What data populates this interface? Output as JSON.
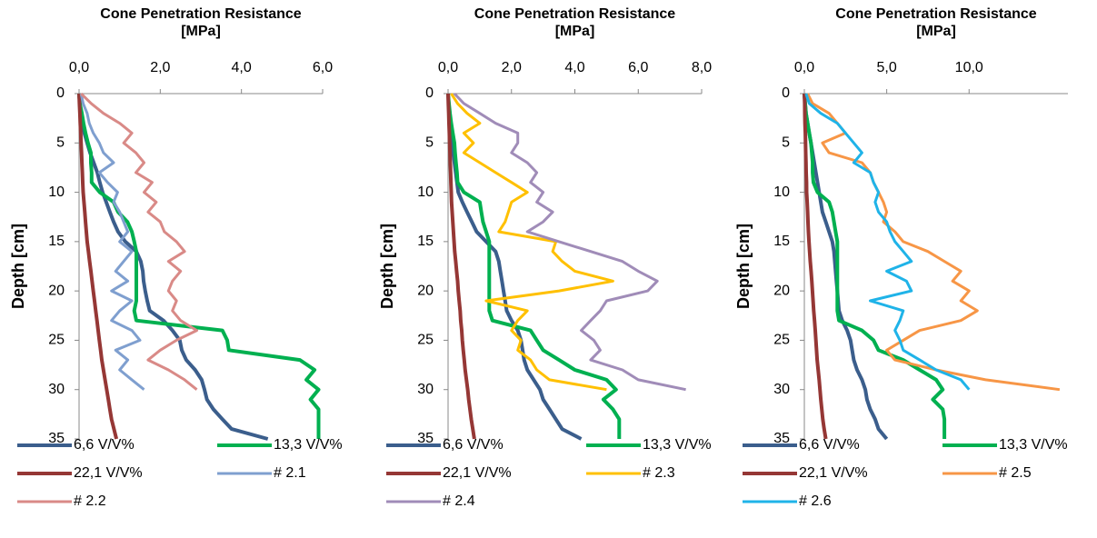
{
  "chart_data": [
    {
      "type": "line",
      "x_label": "Cone Penetration Resistance [MPa]",
      "y_label": "Depth [cm]",
      "y_inverted": true,
      "xlim": [
        0,
        6
      ],
      "xticks": [
        {
          "value": 0,
          "label": "0,0"
        },
        {
          "value": 2,
          "label": "2,0"
        },
        {
          "value": 4,
          "label": "4,0"
        },
        {
          "value": 6,
          "label": "6,0"
        }
      ],
      "ylim": [
        0,
        35
      ],
      "yticks": [
        0,
        5,
        10,
        15,
        20,
        25,
        30,
        35
      ],
      "y": [
        0,
        1,
        2,
        3,
        4,
        5,
        6,
        7,
        8,
        9,
        10,
        11,
        12,
        13,
        14,
        15,
        16,
        17,
        18,
        19,
        20,
        21,
        22,
        23,
        24,
        25,
        26,
        27,
        28,
        29,
        30,
        31,
        32,
        33,
        34,
        35
      ],
      "series": [
        {
          "name": "6,6 V/V%",
          "color": "#3b5e8c",
          "values": [
            0,
            0.02,
            0.04,
            0.09,
            0.13,
            0.2,
            0.27,
            0.36,
            0.45,
            0.51,
            0.58,
            0.67,
            0.76,
            0.85,
            0.96,
            1.14,
            1.41,
            1.52,
            1.57,
            1.59,
            1.63,
            1.68,
            1.74,
            2.08,
            2.3,
            2.48,
            2.53,
            2.64,
            2.86,
            3.02,
            3.09,
            3.15,
            3.31,
            3.53,
            3.76,
            4.65
          ]
        },
        {
          "name": "13,3 V/V%",
          "color": "#00b050",
          "values": [
            0,
            0.02,
            0.07,
            0.11,
            0.16,
            0.22,
            0.29,
            0.29,
            0.31,
            0.31,
            0.51,
            0.85,
            0.96,
            1.19,
            1.3,
            1.36,
            1.41,
            1.41,
            1.41,
            1.41,
            1.41,
            1.41,
            1.36,
            1.41,
            3.53,
            3.65,
            3.69,
            5.44,
            5.8,
            5.6,
            5.9,
            5.7,
            5.9,
            5.9,
            5.9,
            5.9
          ]
        },
        {
          "name": "22,1 V/V%",
          "color": "#953735",
          "values": [
            0,
            0.01,
            0.02,
            0.03,
            0.04,
            0.05,
            0.06,
            0.07,
            0.08,
            0.09,
            0.1,
            0.12,
            0.14,
            0.16,
            0.18,
            0.2,
            0.23,
            0.26,
            0.29,
            0.32,
            0.35,
            0.38,
            0.41,
            0.44,
            0.47,
            0.5,
            0.53,
            0.56,
            0.6,
            0.64,
            0.68,
            0.72,
            0.76,
            0.8,
            0.86,
            0.92
          ]
        },
        {
          "name": "# 2.1",
          "color": "#7f9fcf",
          "values": [
            0.05,
            0.1,
            0.2,
            0.25,
            0.35,
            0.5,
            0.6,
            0.85,
            0.5,
            0.7,
            0.95,
            0.85,
            1.0,
            1.1,
            1.2,
            1.0,
            1.3,
            1.1,
            0.9,
            1.2,
            0.8,
            1.3,
            1.0,
            0.8,
            1.3,
            1.5,
            0.9,
            1.2,
            1.0,
            1.3,
            1.6,
            null,
            null,
            null,
            null,
            null
          ]
        },
        {
          "name": "# 2.2",
          "color": "#d98a87",
          "values": [
            0.05,
            0.3,
            0.6,
            1.0,
            1.3,
            1.1,
            1.4,
            1.6,
            1.4,
            1.8,
            1.6,
            1.9,
            1.7,
            2.0,
            2.1,
            2.4,
            2.6,
            2.2,
            2.5,
            2.3,
            2.2,
            2.4,
            2.3,
            2.5,
            2.9,
            2.4,
            2.0,
            1.7,
            2.2,
            2.6,
            2.9,
            null,
            null,
            null,
            null,
            null
          ]
        }
      ]
    },
    {
      "type": "line",
      "x_label": "Cone Penetration Resistance [MPa]",
      "y_label": "Depth [cm]",
      "y_inverted": true,
      "xlim": [
        0,
        8
      ],
      "xticks": [
        {
          "value": 0,
          "label": "0,0"
        },
        {
          "value": 2,
          "label": "2,0"
        },
        {
          "value": 4,
          "label": "4,0"
        },
        {
          "value": 6,
          "label": "6,0"
        },
        {
          "value": 8,
          "label": "8,0"
        }
      ],
      "ylim": [
        0,
        35
      ],
      "yticks": [
        0,
        5,
        10,
        15,
        20,
        25,
        30,
        35
      ],
      "y": [
        0,
        1,
        2,
        3,
        4,
        5,
        6,
        7,
        8,
        9,
        10,
        11,
        12,
        13,
        14,
        15,
        16,
        17,
        18,
        19,
        20,
        21,
        22,
        23,
        24,
        25,
        26,
        27,
        28,
        29,
        30,
        31,
        32,
        33,
        34,
        35
      ],
      "series": [
        {
          "name": "6,6 V/V%",
          "color": "#3b5e8c",
          "values": [
            0,
            0.02,
            0.05,
            0.08,
            0.1,
            0.13,
            0.16,
            0.2,
            0.24,
            0.28,
            0.32,
            0.45,
            0.6,
            0.75,
            0.9,
            1.2,
            1.5,
            1.6,
            1.65,
            1.7,
            1.75,
            1.8,
            1.85,
            2.0,
            2.2,
            2.3,
            2.35,
            2.4,
            2.5,
            2.7,
            2.9,
            3.0,
            3.2,
            3.4,
            3.6,
            4.2
          ]
        },
        {
          "name": "13,3 V/V%",
          "color": "#00b050",
          "values": [
            0,
            0.03,
            0.06,
            0.1,
            0.15,
            0.2,
            0.22,
            0.25,
            0.28,
            0.3,
            0.5,
            1.0,
            1.05,
            1.1,
            1.2,
            1.3,
            1.3,
            1.3,
            1.3,
            1.3,
            1.3,
            1.3,
            1.3,
            1.4,
            2.6,
            2.8,
            3.0,
            3.5,
            4.0,
            5.0,
            5.3,
            4.9,
            5.2,
            5.4,
            5.4,
            5.4
          ]
        },
        {
          "name": "22,1 V/V%",
          "color": "#953735",
          "values": [
            0,
            0.01,
            0.02,
            0.03,
            0.04,
            0.05,
            0.06,
            0.07,
            0.08,
            0.09,
            0.1,
            0.11,
            0.13,
            0.15,
            0.17,
            0.19,
            0.21,
            0.24,
            0.27,
            0.3,
            0.32,
            0.35,
            0.38,
            0.4,
            0.43,
            0.45,
            0.48,
            0.51,
            0.54,
            0.58,
            0.62,
            0.65,
            0.69,
            0.73,
            0.78,
            0.83
          ]
        },
        {
          "name": "# 2.3",
          "color": "#ffc000",
          "values": [
            0.1,
            0.3,
            0.6,
            1.0,
            0.5,
            0.8,
            0.5,
            1.0,
            1.5,
            2.0,
            2.5,
            2.0,
            1.9,
            1.8,
            1.6,
            3.4,
            3.3,
            3.6,
            4.0,
            5.2,
            3.5,
            1.2,
            2.5,
            2.2,
            2.0,
            2.3,
            2.2,
            2.6,
            2.8,
            3.2,
            5.0,
            null,
            null,
            null,
            null,
            null
          ]
        },
        {
          "name": "# 2.4",
          "color": "#a08cb8",
          "values": [
            0.2,
            0.5,
            1.0,
            1.5,
            2.2,
            2.2,
            2.0,
            2.5,
            2.8,
            2.6,
            3.0,
            2.8,
            3.3,
            3.0,
            2.5,
            3.5,
            4.5,
            5.5,
            6.0,
            6.6,
            6.3,
            5.0,
            4.8,
            4.5,
            4.2,
            4.6,
            4.8,
            4.5,
            5.5,
            6.0,
            7.5,
            null,
            null,
            null,
            null,
            null
          ]
        }
      ]
    },
    {
      "type": "line",
      "x_label": "Cone Penetration Resistance [MPa]",
      "y_label": "Depth [cm]",
      "y_inverted": true,
      "xlim": [
        0,
        16
      ],
      "xticks": [
        {
          "value": 0,
          "label": "0,0"
        },
        {
          "value": 5,
          "label": "5,0"
        },
        {
          "value": 10,
          "label": "10,0"
        }
      ],
      "ylim": [
        0,
        35
      ],
      "yticks": [
        0,
        5,
        10,
        15,
        20,
        25,
        30,
        35
      ],
      "y": [
        0,
        1,
        2,
        3,
        4,
        5,
        6,
        7,
        8,
        9,
        10,
        11,
        12,
        13,
        14,
        15,
        16,
        17,
        18,
        19,
        20,
        21,
        22,
        23,
        24,
        25,
        26,
        27,
        28,
        29,
        30,
        31,
        32,
        33,
        34,
        35
      ],
      "series": [
        {
          "name": "6,6 V/V%",
          "color": "#3b5e8c",
          "values": [
            0,
            0.05,
            0.1,
            0.2,
            0.3,
            0.4,
            0.5,
            0.6,
            0.7,
            0.8,
            0.9,
            1.0,
            1.1,
            1.3,
            1.5,
            1.7,
            1.8,
            1.85,
            1.9,
            1.95,
            2.0,
            2.05,
            2.1,
            2.3,
            2.6,
            2.8,
            2.9,
            3.0,
            3.2,
            3.5,
            3.7,
            3.8,
            4.0,
            4.3,
            4.5,
            5.0
          ]
        },
        {
          "name": "13,3 V/V%",
          "color": "#00b050",
          "values": [
            0,
            0.05,
            0.1,
            0.2,
            0.3,
            0.4,
            0.45,
            0.5,
            0.5,
            0.55,
            0.8,
            1.5,
            1.7,
            1.8,
            1.9,
            2.0,
            2.0,
            2.0,
            2.0,
            2.0,
            2.0,
            2.0,
            2.0,
            2.1,
            3.5,
            4.2,
            4.5,
            6.0,
            7.0,
            8.0,
            8.4,
            7.8,
            8.4,
            8.5,
            8.5,
            8.5
          ]
        },
        {
          "name": "22,1 V/V%",
          "color": "#953735",
          "values": [
            0,
            0.02,
            0.03,
            0.04,
            0.06,
            0.07,
            0.08,
            0.1,
            0.11,
            0.13,
            0.14,
            0.17,
            0.2,
            0.22,
            0.25,
            0.28,
            0.32,
            0.36,
            0.41,
            0.45,
            0.49,
            0.53,
            0.57,
            0.62,
            0.66,
            0.7,
            0.74,
            0.78,
            0.84,
            0.9,
            0.95,
            1.0,
            1.06,
            1.12,
            1.2,
            1.3
          ]
        },
        {
          "name": "# 2.5",
          "color": "#f79646",
          "values": [
            0.2,
            0.5,
            1.5,
            2.0,
            2.5,
            1.1,
            1.5,
            3.5,
            4.0,
            4.2,
            4.5,
            4.8,
            5.0,
            4.8,
            5.5,
            6.0,
            7.5,
            8.5,
            9.5,
            9.0,
            10.0,
            9.5,
            10.5,
            9.5,
            7.0,
            6.0,
            5.0,
            5.5,
            8.0,
            11.0,
            15.5,
            null,
            null,
            null,
            null,
            null
          ]
        },
        {
          "name": "# 2.6",
          "color": "#1fb3e8",
          "values": [
            0.1,
            0.3,
            1.0,
            2.0,
            2.5,
            3.0,
            3.5,
            3.0,
            4.0,
            4.2,
            4.5,
            4.3,
            4.5,
            5.0,
            5.2,
            5.5,
            6.0,
            6.5,
            5.0,
            6.2,
            6.5,
            4.0,
            6.0,
            5.8,
            5.5,
            5.8,
            6.0,
            7.0,
            8.0,
            9.5,
            10.0,
            null,
            null,
            null,
            null,
            null
          ]
        }
      ]
    }
  ]
}
